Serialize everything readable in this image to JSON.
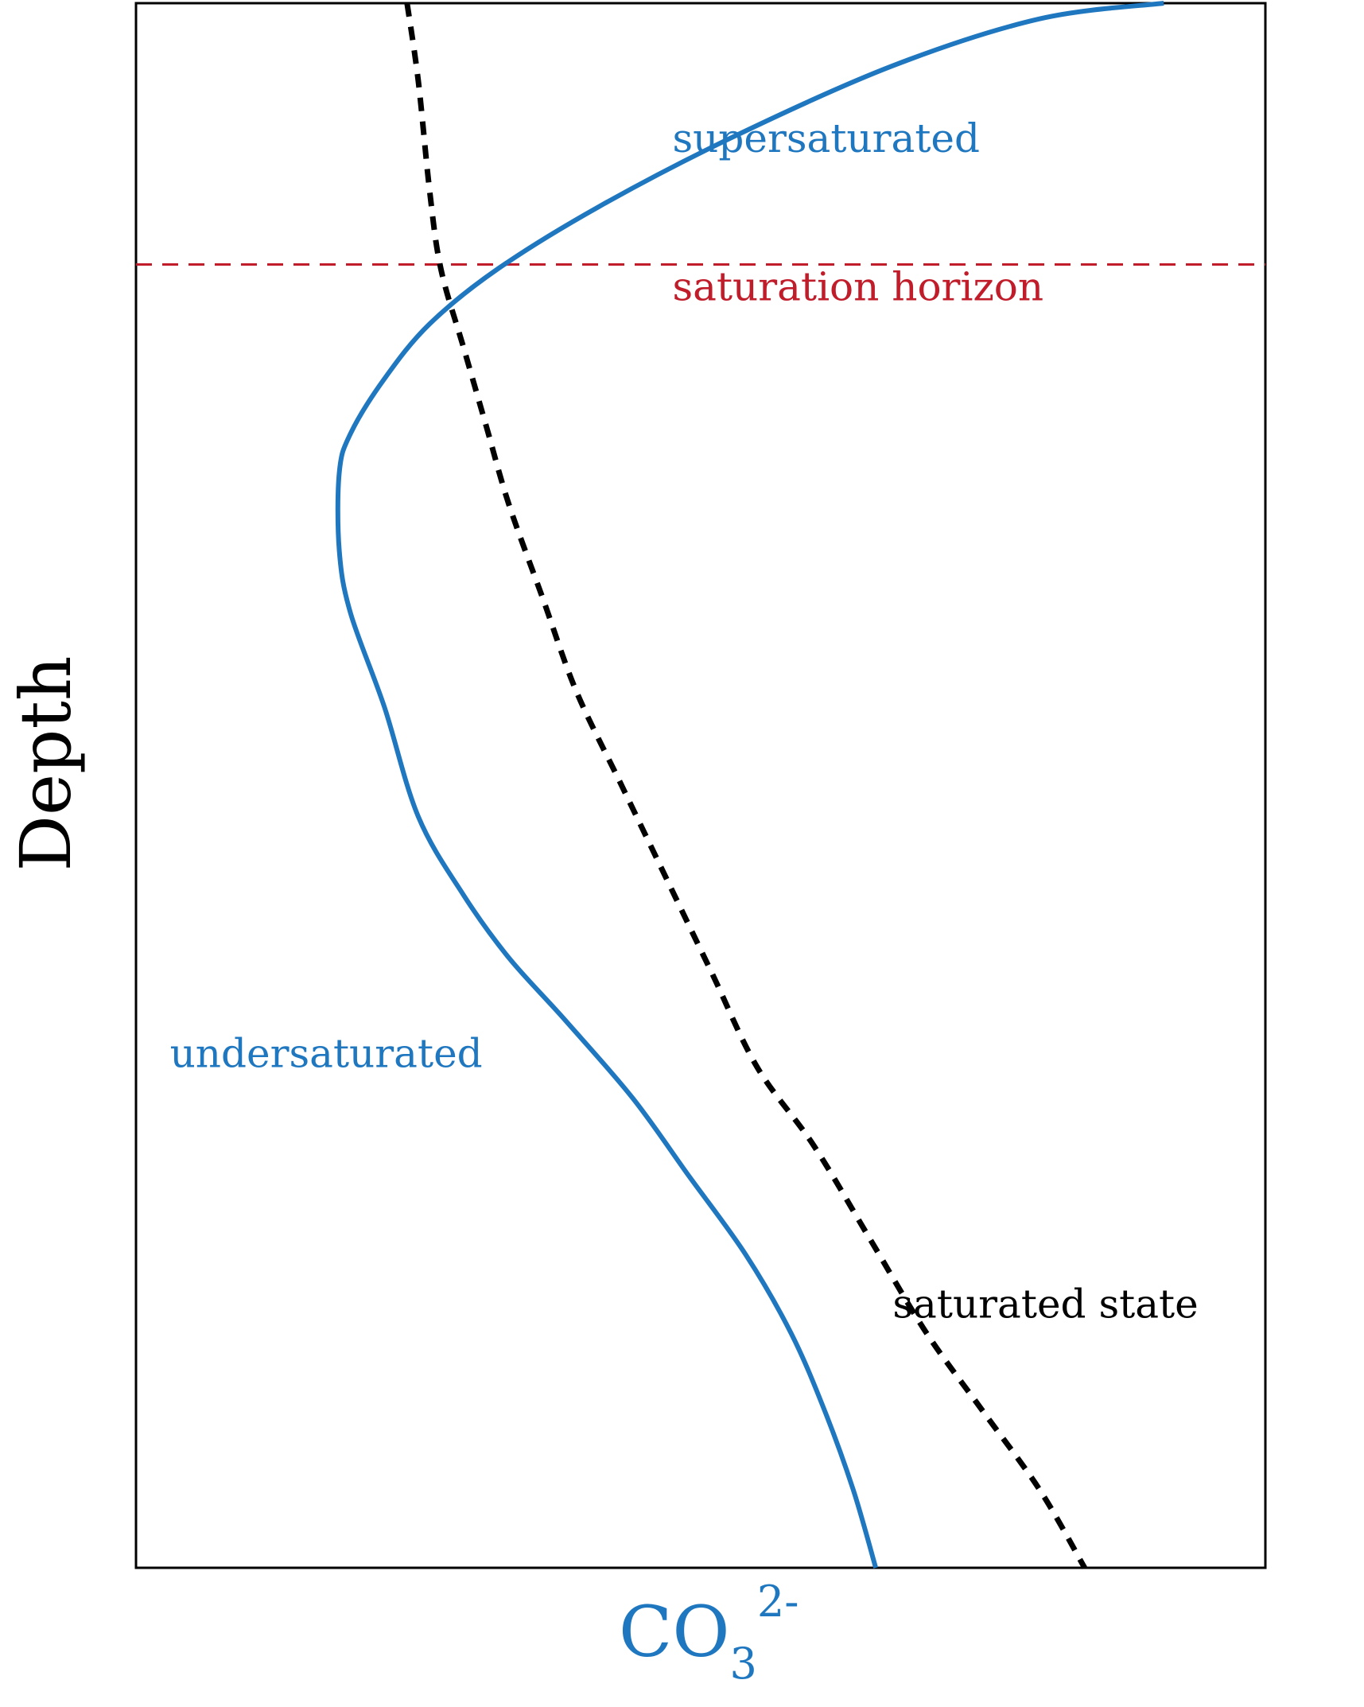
{
  "chart_data": {
    "type": "line",
    "xlabel": "CO",
    "xlabel_subscript": "3",
    "xlabel_superscript": "2-",
    "ylabel": "Depth",
    "y_inverted": true,
    "grid": false,
    "xlim": [
      0,
      1
    ],
    "ylim": [
      0,
      1
    ],
    "series": [
      {
        "name": "",
        "color": "#1f77c0",
        "style": "solid",
        "x": [
          0.91,
          0.8,
          0.67,
          0.53,
          0.41,
          0.32,
          0.26,
          0.22,
          0.19,
          0.18,
          0.18,
          0.19,
          0.22,
          0.25,
          0.29,
          0.33,
          0.38,
          0.44,
          0.49,
          0.54,
          0.58,
          0.61,
          0.635,
          0.655
        ],
        "y": [
          0.0,
          0.01,
          0.04,
          0.085,
          0.13,
          0.17,
          0.205,
          0.24,
          0.275,
          0.3,
          0.35,
          0.39,
          0.45,
          0.52,
          0.57,
          0.61,
          0.65,
          0.7,
          0.75,
          0.8,
          0.85,
          0.9,
          0.95,
          1.0
        ]
      },
      {
        "name": "",
        "color": "#000000",
        "style": "dashed",
        "x": [
          0.24,
          0.25,
          0.26,
          0.27,
          0.29,
          0.31,
          0.33,
          0.36,
          0.39,
          0.43,
          0.47,
          0.51,
          0.55,
          0.6,
          0.65,
          0.7,
          0.75,
          0.8,
          0.84
        ],
        "y": [
          0.0,
          0.05,
          0.12,
          0.17,
          0.22,
          0.27,
          0.32,
          0.38,
          0.44,
          0.5,
          0.56,
          0.62,
          0.68,
          0.73,
          0.79,
          0.85,
          0.9,
          0.95,
          1.0
        ]
      }
    ],
    "reference_lines": [
      {
        "orientation": "horizontal",
        "y": 0.167,
        "color": "#c01c2a",
        "style": "dashed"
      }
    ],
    "annotations": [
      {
        "text": "supersaturated",
        "color": "#1f77c0",
        "x": 0.475,
        "y": 0.095
      },
      {
        "text": "saturation horizon",
        "color": "#c01c2a",
        "x": 0.475,
        "y": 0.19
      },
      {
        "text": "undersaturated",
        "color": "#1f77c0",
        "x": 0.03,
        "y": 0.68
      },
      {
        "text": "saturated state",
        "color": "#000000",
        "x": 0.67,
        "y": 0.84
      }
    ],
    "colors": {
      "accent": "#1f77c0",
      "horizon": "#c01c2a",
      "axes": "#000000"
    }
  }
}
